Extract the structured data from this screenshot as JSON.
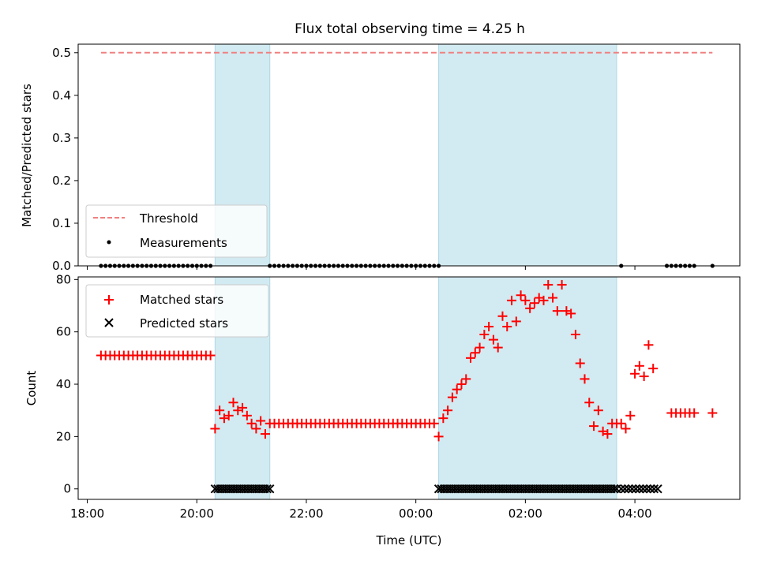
{
  "title": "Flux total observing time = 4.25 h",
  "colors": {
    "threshold": "#f08080",
    "measurement": "#000000",
    "matched": "#ff0000",
    "predicted": "#000000",
    "shade": "#add8e6"
  },
  "chart_data": [
    {
      "type": "scatter",
      "panel": "top",
      "ylabel": "Matched/Predicted stars",
      "xlim": [
        "17:50",
        "05:55"
      ],
      "ylim": [
        0,
        0.52
      ],
      "yticks": [
        "0.0",
        "0.1",
        "0.2",
        "0.3",
        "0.4",
        "0.5"
      ],
      "xtick_labels_shown": false,
      "legend_position": "lower-left",
      "shaded_intervals": [
        [
          "20:20",
          "21:20"
        ],
        [
          "00:25",
          "03:40"
        ]
      ],
      "threshold": {
        "name": "Threshold",
        "value": 0.5,
        "x": [
          "18:15",
          "05:25"
        ]
      },
      "measurements": {
        "name": "Measurements",
        "y": 0.0,
        "segments": [
          {
            "start": "18:15",
            "end": "20:15",
            "step_min": 5
          },
          {
            "start": "21:20",
            "end": "00:25",
            "step_min": 5
          }
        ],
        "points": [
          "03:45",
          "04:35",
          "04:40",
          "04:45",
          "04:50",
          "04:55",
          "05:00",
          "05:05",
          "05:25"
        ]
      }
    },
    {
      "type": "scatter",
      "panel": "bottom",
      "xlabel": "Time (UTC)",
      "ylabel": "Count",
      "xlim": [
        "17:50",
        "05:55"
      ],
      "ylim": [
        -4,
        81
      ],
      "xticks": [
        "18:00",
        "20:00",
        "22:00",
        "00:00",
        "02:00",
        "04:00"
      ],
      "yticks": [
        "0",
        "20",
        "40",
        "60",
        "80"
      ],
      "legend_position": "upper-left",
      "shaded_intervals": [
        [
          "20:20",
          "21:20"
        ],
        [
          "00:25",
          "03:40"
        ]
      ],
      "series": [
        {
          "name": "Matched stars",
          "marker": "+",
          "segments": [
            {
              "start": "18:15",
              "end": "20:15",
              "step_min": 5,
              "value": 51
            },
            {
              "start": "21:20",
              "end": "00:20",
              "step_min": 5,
              "value": 25
            },
            {
              "start": "04:40",
              "end": "05:05",
              "step_min": 5,
              "value": 29
            }
          ],
          "points": [
            [
              "20:20",
              23
            ],
            [
              "20:25",
              30
            ],
            [
              "20:30",
              27
            ],
            [
              "20:35",
              28
            ],
            [
              "20:40",
              33
            ],
            [
              "20:45",
              30
            ],
            [
              "20:50",
              31
            ],
            [
              "20:55",
              28
            ],
            [
              "21:00",
              25
            ],
            [
              "21:05",
              23
            ],
            [
              "21:10",
              26
            ],
            [
              "21:15",
              21
            ],
            [
              "00:25",
              20
            ],
            [
              "00:30",
              27
            ],
            [
              "00:35",
              30
            ],
            [
              "00:40",
              35
            ],
            [
              "00:45",
              38
            ],
            [
              "00:50",
              40
            ],
            [
              "00:55",
              42
            ],
            [
              "01:00",
              50
            ],
            [
              "01:05",
              52
            ],
            [
              "01:10",
              54
            ],
            [
              "01:15",
              59
            ],
            [
              "01:20",
              62
            ],
            [
              "01:25",
              57
            ],
            [
              "01:30",
              54
            ],
            [
              "01:35",
              66
            ],
            [
              "01:40",
              62
            ],
            [
              "01:45",
              72
            ],
            [
              "01:50",
              64
            ],
            [
              "01:55",
              74
            ],
            [
              "02:00",
              72
            ],
            [
              "02:05",
              69
            ],
            [
              "02:10",
              71
            ],
            [
              "02:15",
              73
            ],
            [
              "02:20",
              72
            ],
            [
              "02:25",
              78
            ],
            [
              "02:30",
              73
            ],
            [
              "02:35",
              68
            ],
            [
              "02:40",
              78
            ],
            [
              "02:45",
              68
            ],
            [
              "02:50",
              67
            ],
            [
              "02:55",
              59
            ],
            [
              "03:00",
              48
            ],
            [
              "03:05",
              42
            ],
            [
              "03:10",
              33
            ],
            [
              "03:15",
              24
            ],
            [
              "03:20",
              30
            ],
            [
              "03:25",
              22
            ],
            [
              "03:30",
              21
            ],
            [
              "03:35",
              25
            ],
            [
              "03:40",
              25
            ],
            [
              "03:45",
              25
            ],
            [
              "03:50",
              23
            ],
            [
              "03:55",
              28
            ],
            [
              "04:00",
              44
            ],
            [
              "04:05",
              47
            ],
            [
              "04:10",
              43
            ],
            [
              "04:15",
              55
            ],
            [
              "04:20",
              46
            ],
            [
              "05:25",
              29
            ]
          ]
        },
        {
          "name": "Predicted stars",
          "marker": "x",
          "value": 0,
          "segments": [
            {
              "start": "20:20",
              "end": "21:20",
              "step_min": 3
            },
            {
              "start": "00:25",
              "end": "03:40",
              "step_min": 3
            },
            {
              "start": "03:45",
              "end": "04:25",
              "step_min": 4
            }
          ]
        }
      ]
    }
  ]
}
